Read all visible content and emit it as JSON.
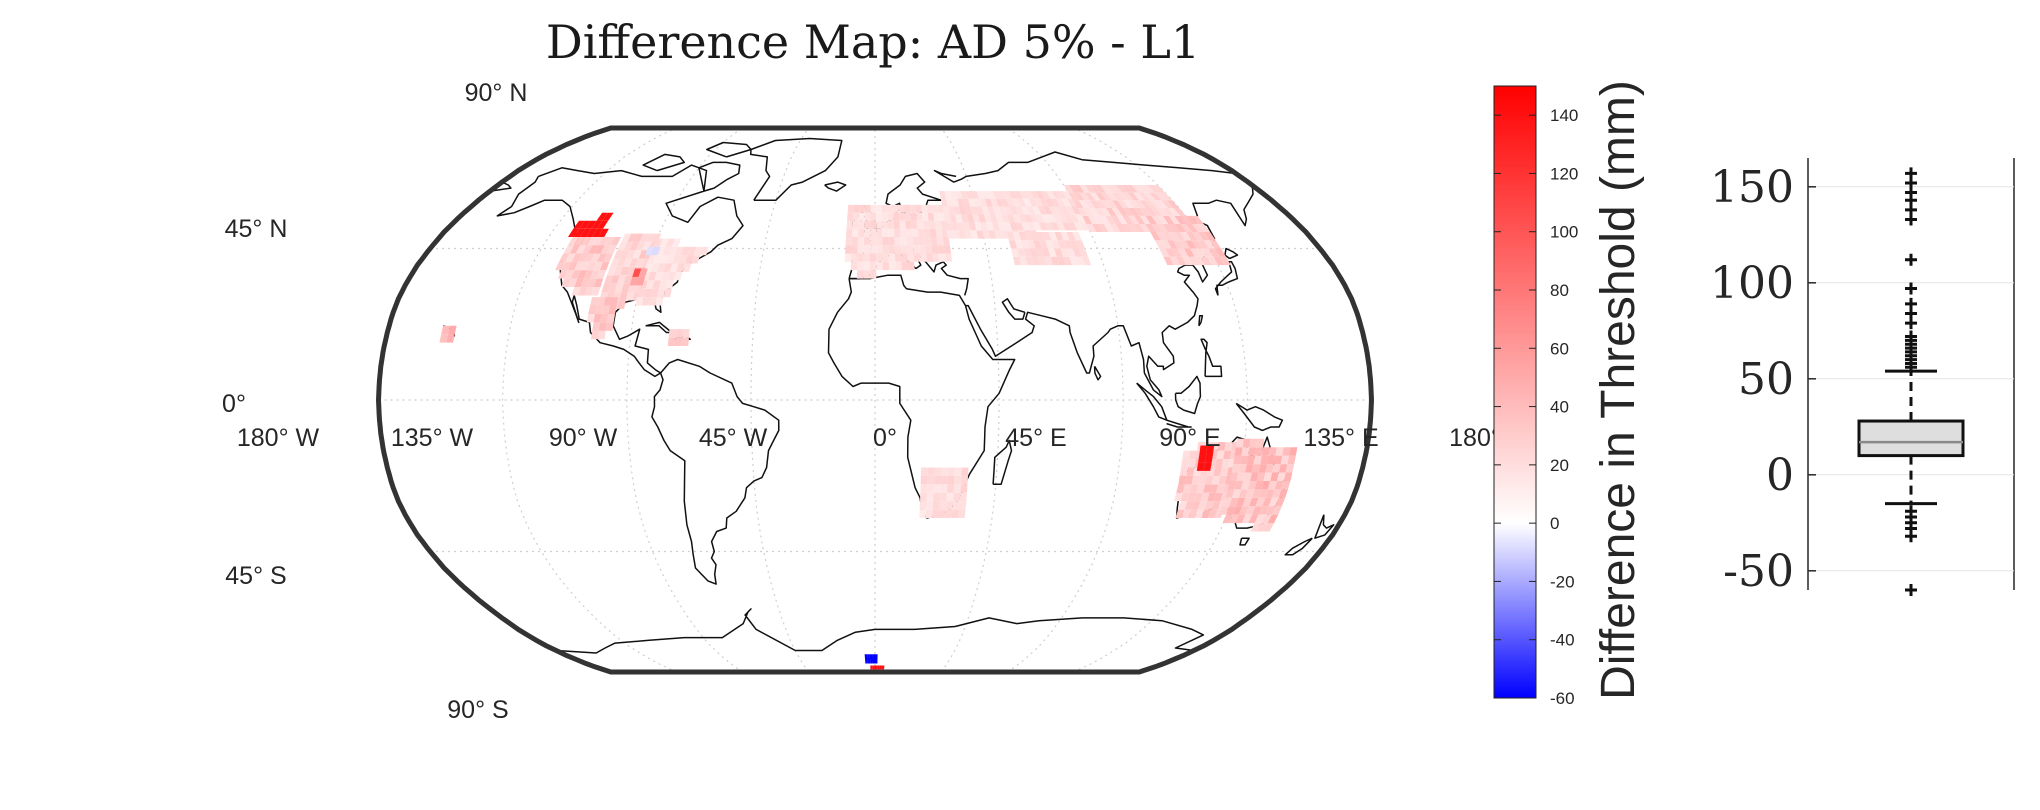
{
  "figure": {
    "title": "Difference Map: AD 5% - L1"
  },
  "map": {
    "lat_labels": [
      "90° N",
      "45° N",
      "0°",
      "45° S",
      "90° S"
    ],
    "lon_labels": [
      "180° W",
      "135° W",
      "90° W",
      "45° W",
      "0°",
      "45° E",
      "90° E",
      "135° E",
      "180°"
    ]
  },
  "chart_data": [
    {
      "type": "heatmap",
      "title": "Difference Map: AD 5% - L1",
      "projection": "Robinson (world)",
      "colormap": "blue-white-red (diverging)",
      "clim": [
        -60,
        150
      ],
      "colorbar_label": "Difference in Threshold (mm)",
      "colorbar_ticks": [
        -60,
        -40,
        -20,
        0,
        20,
        40,
        60,
        80,
        100,
        120,
        140
      ],
      "colors": {
        "negative": "#0000ff",
        "zero": "#ffffff",
        "positive": "#ff0000"
      },
      "regions": [
        {
          "name": "Pacific Northwest",
          "lon": -122,
          "lat": 48,
          "value": 140
        },
        {
          "name": "Western US",
          "lon": -110,
          "lat": 40,
          "value": 30
        },
        {
          "name": "Central US",
          "lon": -97,
          "lat": 38,
          "value": 25
        },
        {
          "name": "Eastern US",
          "lon": -82,
          "lat": 38,
          "value": 20
        },
        {
          "name": "Central US spot",
          "lon": -92,
          "lat": 36,
          "value": 80
        },
        {
          "name": "Great Lakes spot",
          "lon": -90,
          "lat": 44,
          "value": -10
        },
        {
          "name": "Mexico",
          "lon": -100,
          "lat": 22,
          "value": 30
        },
        {
          "name": "Hawaii",
          "lon": -156,
          "lat": 20,
          "value": 40
        },
        {
          "name": "Caribbean",
          "lon": -72,
          "lat": 19,
          "value": 25
        },
        {
          "name": "Europe",
          "lon": 10,
          "lat": 52,
          "value": 20
        },
        {
          "name": "Russia",
          "lon": 60,
          "lat": 57,
          "value": 20
        },
        {
          "name": "Siberia",
          "lon": 110,
          "lat": 58,
          "value": 25
        },
        {
          "name": "Central Asia",
          "lon": 72,
          "lat": 45,
          "value": 20
        },
        {
          "name": "Northeast Asia",
          "lon": 125,
          "lat": 48,
          "value": 30
        },
        {
          "name": "Southern Africa",
          "lon": 26,
          "lat": -28,
          "value": 20
        },
        {
          "name": "Western Australia",
          "lon": 120,
          "lat": -25,
          "value": 30
        },
        {
          "name": "Western Australia hotspot",
          "lon": 122,
          "lat": -18,
          "value": 140
        },
        {
          "name": "Eastern Australia",
          "lon": 143,
          "lat": -25,
          "value": 35
        },
        {
          "name": "Antarctica (negative)",
          "lon": -2,
          "lat": -82,
          "value": -60
        },
        {
          "name": "Antarctica (positive)",
          "lon": 2,
          "lat": -85,
          "value": 140
        }
      ]
    },
    {
      "type": "box",
      "ylim": [
        -60,
        165
      ],
      "yticks": [
        -50,
        0,
        50,
        100,
        150
      ],
      "q1": 10,
      "median": 17,
      "q3": 28,
      "whisker_low": -15,
      "whisker_high": 54,
      "outliers": [
        157,
        152,
        147,
        143,
        138,
        133,
        112,
        97,
        89,
        84,
        79,
        72,
        70,
        68,
        66,
        64,
        62,
        60,
        58,
        56,
        -19,
        -22,
        -25,
        -28,
        -32,
        -60
      ]
    }
  ]
}
